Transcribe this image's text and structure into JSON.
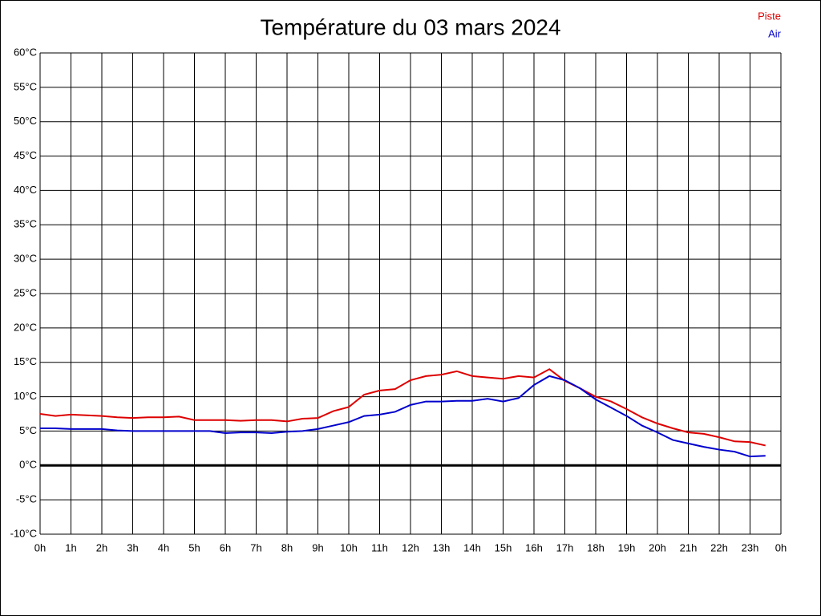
{
  "chart_data": {
    "type": "line",
    "title": "Température du 03 mars 2024",
    "x": [
      0,
      0.5,
      1,
      1.5,
      2,
      2.5,
      3,
      3.5,
      4,
      4.5,
      5,
      5.5,
      6,
      6.5,
      7,
      7.5,
      8,
      8.5,
      9,
      9.5,
      10,
      10.5,
      11,
      11.5,
      12,
      12.5,
      13,
      13.5,
      14,
      14.5,
      15,
      15.5,
      16,
      16.5,
      17,
      17.5,
      18,
      18.5,
      19,
      19.5,
      20,
      20.5,
      21,
      21.5,
      22,
      22.5,
      23,
      23.5
    ],
    "series": [
      {
        "name": "Piste",
        "color": "#dd0000",
        "values": [
          7.5,
          7.2,
          7.4,
          7.3,
          7.2,
          7.0,
          6.9,
          7.0,
          7.0,
          7.1,
          6.6,
          6.6,
          6.6,
          6.5,
          6.6,
          6.6,
          6.4,
          6.8,
          6.9,
          7.9,
          8.5,
          10.3,
          10.9,
          11.1,
          12.4,
          13.0,
          13.2,
          13.7,
          13.0,
          12.8,
          12.6,
          13.0,
          12.8,
          14.0,
          12.3,
          11.2,
          10.0,
          9.3,
          8.2,
          7.0,
          6.1,
          5.4,
          4.8,
          4.6,
          4.1,
          3.5,
          3.4,
          2.9
        ]
      },
      {
        "name": "Air",
        "color": "#0000cc",
        "values": [
          5.4,
          5.4,
          5.3,
          5.3,
          5.3,
          5.1,
          5.0,
          5.0,
          5.0,
          5.0,
          5.0,
          5.0,
          4.7,
          4.8,
          4.8,
          4.7,
          4.9,
          5.0,
          5.3,
          5.8,
          6.3,
          7.2,
          7.4,
          7.8,
          8.8,
          9.3,
          9.3,
          9.4,
          9.4,
          9.7,
          9.3,
          9.8,
          11.7,
          13.0,
          12.4,
          11.2,
          9.6,
          8.4,
          7.2,
          5.8,
          4.8,
          3.7,
          3.2,
          2.7,
          2.3,
          2.0,
          1.3,
          1.4
        ]
      }
    ],
    "xlim": [
      0,
      24
    ],
    "xticks": [
      {
        "value": 0,
        "label": "0h"
      },
      {
        "value": 1,
        "label": "1h"
      },
      {
        "value": 2,
        "label": "2h"
      },
      {
        "value": 3,
        "label": "3h"
      },
      {
        "value": 4,
        "label": "4h"
      },
      {
        "value": 5,
        "label": "5h"
      },
      {
        "value": 6,
        "label": "6h"
      },
      {
        "value": 7,
        "label": "7h"
      },
      {
        "value": 8,
        "label": "8h"
      },
      {
        "value": 9,
        "label": "9h"
      },
      {
        "value": 10,
        "label": "10h"
      },
      {
        "value": 11,
        "label": "11h"
      },
      {
        "value": 12,
        "label": "12h"
      },
      {
        "value": 13,
        "label": "13h"
      },
      {
        "value": 14,
        "label": "14h"
      },
      {
        "value": 15,
        "label": "15h"
      },
      {
        "value": 16,
        "label": "16h"
      },
      {
        "value": 17,
        "label": "17h"
      },
      {
        "value": 18,
        "label": "18h"
      },
      {
        "value": 19,
        "label": "19h"
      },
      {
        "value": 20,
        "label": "20h"
      },
      {
        "value": 21,
        "label": "21h"
      },
      {
        "value": 22,
        "label": "22h"
      },
      {
        "value": 23,
        "label": "23h"
      },
      {
        "value": 24,
        "label": "0h"
      }
    ],
    "ylim": [
      -10,
      60
    ],
    "yticks": [
      {
        "value": -10,
        "label": "-10°C"
      },
      {
        "value": -5,
        "label": "-5°C"
      },
      {
        "value": 0,
        "label": "0°C"
      },
      {
        "value": 5,
        "label": "5°C"
      },
      {
        "value": 10,
        "label": "10°C"
      },
      {
        "value": 15,
        "label": "15°C"
      },
      {
        "value": 20,
        "label": "20°C"
      },
      {
        "value": 25,
        "label": "25°C"
      },
      {
        "value": 30,
        "label": "30°C"
      },
      {
        "value": 35,
        "label": "35°C"
      },
      {
        "value": 40,
        "label": "40°C"
      },
      {
        "value": 45,
        "label": "45°C"
      },
      {
        "value": 50,
        "label": "50°C"
      },
      {
        "value": 55,
        "label": "55°C"
      },
      {
        "value": 60,
        "label": "60°C"
      }
    ],
    "grid": true,
    "zero_line": true,
    "legend": "top-right"
  }
}
